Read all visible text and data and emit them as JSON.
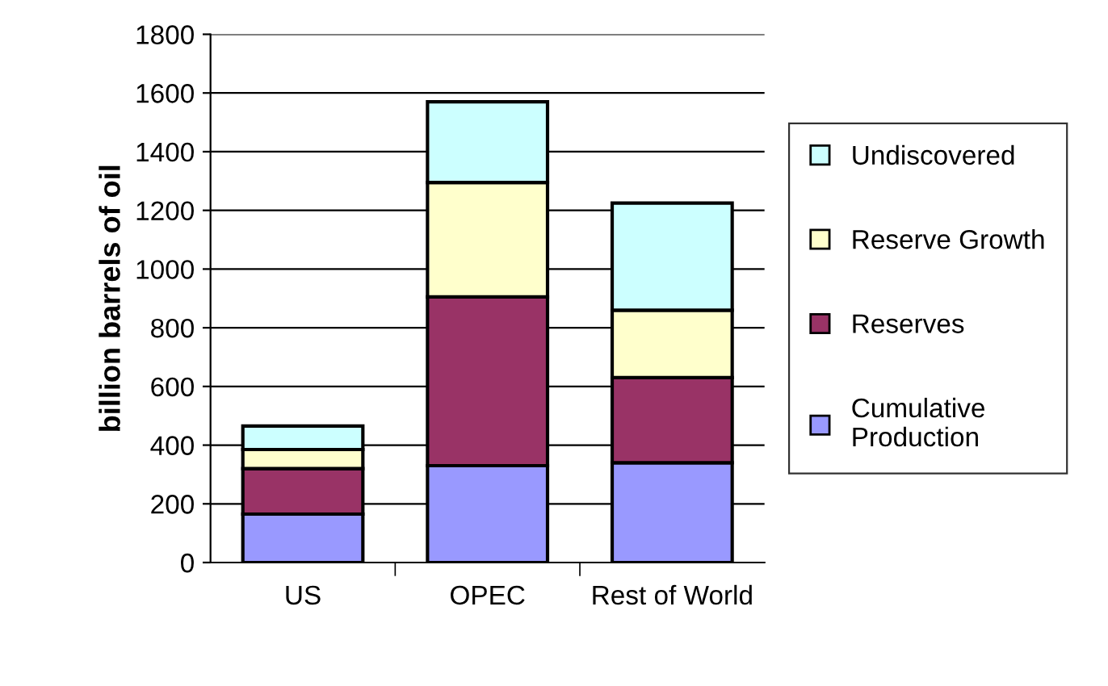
{
  "chart_data": {
    "type": "bar",
    "stacked": true,
    "ylabel": "billion barrels of oil",
    "categories": [
      "US",
      "OPEC",
      "Rest of World"
    ],
    "series": [
      {
        "name": "Cumulative Production",
        "color": "#9999ff",
        "values": [
          165,
          330,
          340
        ]
      },
      {
        "name": "Reserves",
        "color": "#993366",
        "values": [
          155,
          575,
          290
        ]
      },
      {
        "name": "Reserve Growth",
        "color": "#ffffcc",
        "values": [
          65,
          390,
          230
        ]
      },
      {
        "name": "Undiscovered",
        "color": "#ccffff",
        "values": [
          80,
          275,
          365
        ]
      }
    ],
    "ylim": [
      0,
      1800
    ],
    "yticks": [
      0,
      200,
      400,
      600,
      800,
      1000,
      1200,
      1400,
      1600,
      1800
    ],
    "grid": "y",
    "legend": "right"
  }
}
